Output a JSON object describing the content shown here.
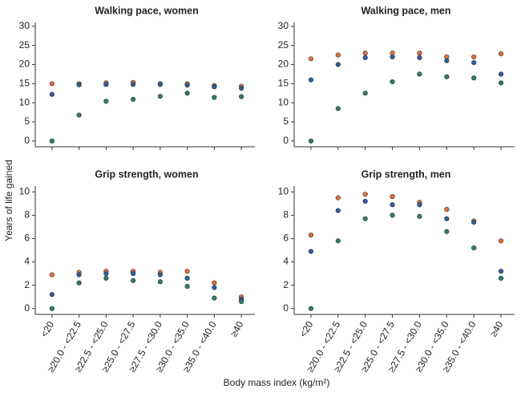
{
  "ylabel": "Years of life gained",
  "xlabel": "Body mass index (kg/m²)",
  "chart_data": [
    {
      "type": "scatter",
      "title": "Walking pace, women",
      "ylim": [
        -1.5,
        31
      ],
      "yticks": [
        0,
        5,
        10,
        15,
        20,
        25,
        30
      ],
      "series": [
        {
          "color": "#e0703a",
          "values": [
            15,
            15,
            15.2,
            15.3,
            15,
            15,
            14.5,
            14.3
          ]
        },
        {
          "color": "#2b5f9e",
          "values": [
            12.2,
            14.7,
            14.8,
            14.8,
            14.8,
            14.6,
            14.2,
            13.8
          ]
        },
        {
          "color": "#2e7d6e",
          "values": [
            0,
            6.8,
            10.4,
            10.9,
            11.7,
            12.5,
            11.4,
            11.6
          ]
        }
      ]
    },
    {
      "type": "scatter",
      "title": "Walking pace, men",
      "ylim": [
        -1.5,
        31
      ],
      "yticks": [
        0,
        5,
        10,
        15,
        20,
        25,
        30
      ],
      "series": [
        {
          "color": "#e0703a",
          "values": [
            21.5,
            22.5,
            23,
            23,
            23,
            22,
            22,
            22.8
          ]
        },
        {
          "color": "#2b5f9e",
          "values": [
            16,
            20,
            21.8,
            22,
            21.8,
            21,
            20.5,
            17.5
          ]
        },
        {
          "color": "#2e7d6e",
          "values": [
            0,
            8.5,
            12.5,
            15.5,
            17.5,
            16.8,
            16.5,
            15.2
          ]
        }
      ]
    },
    {
      "type": "scatter",
      "title": "Grip strength, women",
      "categories": [
        "<20",
        "≥20.0 - <22.5",
        "≥22.5 - <25.0",
        "≥25.0 - <27.5",
        "≥27.5 - <30.0",
        "≥30.0 - <35.0",
        "≥35.0 - <40.0",
        "≥40"
      ],
      "ylim": [
        -0.5,
        10.5
      ],
      "yticks": [
        0,
        2,
        4,
        6,
        8,
        10
      ],
      "series": [
        {
          "color": "#e0703a",
          "values": [
            2.9,
            3.1,
            3.2,
            3.2,
            3.1,
            3.2,
            2.2,
            1.0
          ]
        },
        {
          "color": "#2b5f9e",
          "values": [
            1.2,
            2.9,
            3.0,
            3.0,
            2.9,
            2.6,
            1.8,
            0.8
          ]
        },
        {
          "color": "#2e7d6e",
          "values": [
            0,
            2.2,
            2.6,
            2.4,
            2.3,
            1.9,
            0.9,
            0.6
          ]
        }
      ]
    },
    {
      "type": "scatter",
      "title": "Grip strength, men",
      "categories": [
        "<20",
        "≥20.0 - <22.5",
        "≥22.5 - <25.0",
        "≥25.0 - <27.5",
        "≥27.5 - <30.0",
        "≥30.0 - <35.0",
        "≥35.0 - <40.0",
        "≥40"
      ],
      "ylim": [
        -0.5,
        10.5
      ],
      "yticks": [
        0,
        2,
        4,
        6,
        8,
        10
      ],
      "series": [
        {
          "color": "#e0703a",
          "values": [
            6.3,
            9.5,
            9.8,
            9.6,
            9.1,
            8.5,
            7.5,
            5.8
          ]
        },
        {
          "color": "#2b5f9e",
          "values": [
            4.9,
            8.4,
            9.2,
            8.9,
            8.9,
            7.7,
            7.4,
            3.2
          ]
        },
        {
          "color": "#2e7d6e",
          "values": [
            0,
            5.8,
            7.7,
            8.0,
            7.9,
            6.6,
            5.2,
            2.6
          ]
        }
      ]
    }
  ]
}
